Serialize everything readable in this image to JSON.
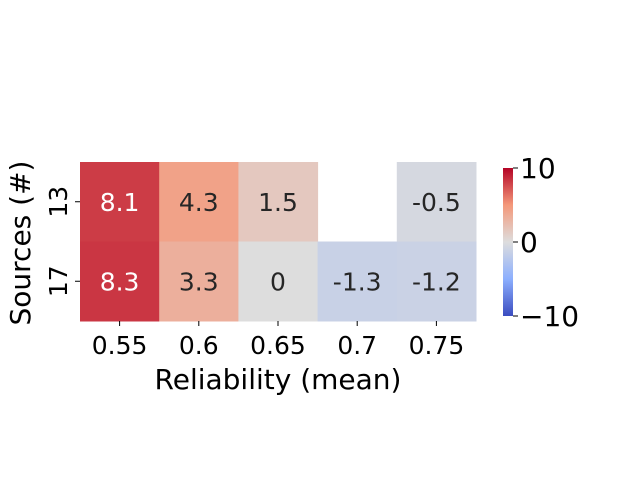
{
  "chart_data": {
    "type": "heatmap",
    "x_categories": [
      "0.55",
      "0.6",
      "0.65",
      "0.7",
      "0.75"
    ],
    "y_categories": [
      "13",
      "17"
    ],
    "values": [
      [
        8.1,
        4.3,
        1.5,
        null,
        -0.5
      ],
      [
        8.3,
        3.3,
        0,
        -1.3,
        -1.2
      ]
    ],
    "cell_labels": [
      [
        "8.1",
        "4.3",
        "1.5",
        "",
        "-0.5"
      ],
      [
        "8.3",
        "3.3",
        "0",
        "-1.3",
        "-1.2"
      ]
    ],
    "xlabel": "Reliability (mean)",
    "ylabel": "Sources (#)",
    "colormap": "coolwarm",
    "colorbar": {
      "vmin": -10,
      "vmax": 10,
      "ticks": [
        10,
        0,
        -10
      ],
      "tick_labels": [
        "10",
        "0",
        "−10"
      ]
    },
    "colors": {
      "cold": "#3b4cc0",
      "neutral": "#dddddd",
      "hot": "#b40426",
      "label_light": "#ffffff",
      "label_dark": "#262626"
    }
  }
}
